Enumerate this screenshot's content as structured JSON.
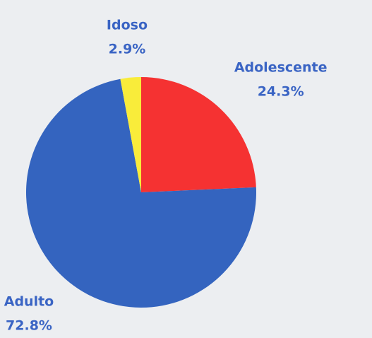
{
  "chart_data": {
    "type": "pie",
    "categories": [
      "Adolescente",
      "Adulto",
      "Idoso"
    ],
    "values": [
      24.3,
      72.8,
      2.9
    ],
    "value_labels": [
      "24.3%",
      "72.8%",
      "2.9%"
    ],
    "colors": [
      "#f53232",
      "#3464bf",
      "#f9ec3a"
    ]
  }
}
